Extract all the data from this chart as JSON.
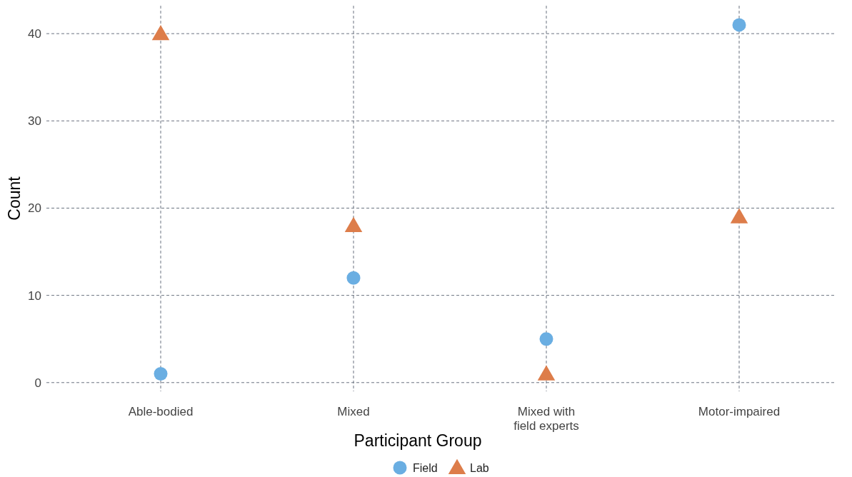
{
  "chart_data": {
    "type": "scatter",
    "xlabel": "Participant Group",
    "ylabel": "Count",
    "categories": [
      "Able-bodied",
      "Mixed",
      "Mixed with\nfield experts",
      "Motor-impaired"
    ],
    "series": [
      {
        "name": "Field",
        "color": "#6aaee2",
        "marker": "circle",
        "values": [
          1,
          12,
          5,
          41
        ]
      },
      {
        "name": "Lab",
        "color": "#dd7d4a",
        "marker": "triangle",
        "values": [
          40,
          18,
          1,
          19
        ]
      }
    ],
    "ylim": [
      -1,
      43.2
    ],
    "yticks": [
      0,
      10,
      20,
      30,
      40
    ],
    "grid": true,
    "line_style": "dashed",
    "legend": "bottom"
  }
}
